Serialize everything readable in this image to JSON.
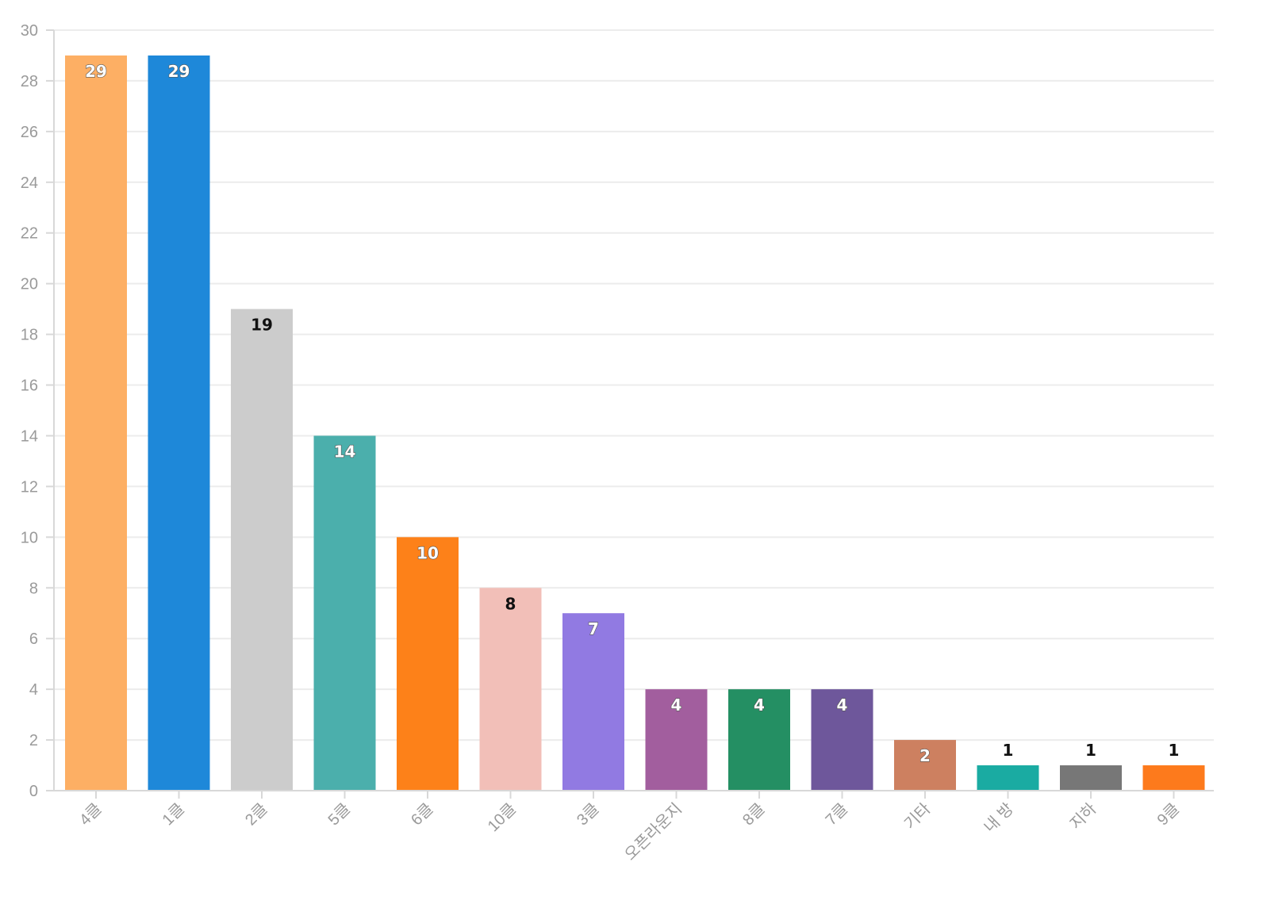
{
  "chart_data": {
    "type": "bar",
    "title": "",
    "xlabel": "",
    "ylabel": "",
    "ylim": [
      0,
      30
    ],
    "y_ticks": [
      0,
      2,
      4,
      6,
      8,
      10,
      12,
      14,
      16,
      18,
      20,
      22,
      24,
      26,
      28,
      30
    ],
    "grid": true,
    "legend": "none",
    "categories": [
      "4클",
      "1클",
      "2클",
      "5클",
      "6클",
      "10클",
      "3클",
      "오픈라운지",
      "8클",
      "7클",
      "기타",
      "내 방",
      "지하",
      "9클"
    ],
    "values": [
      29,
      29,
      19,
      14,
      10,
      8,
      7,
      4,
      4,
      4,
      2,
      1,
      1,
      1
    ],
    "colors": [
      "#fdaf64",
      "#1e88d9",
      "#cccccc",
      "#4bafac",
      "#fd8119",
      "#f2bfb8",
      "#917ae2",
      "#a25e9e",
      "#248f63",
      "#6e579b",
      "#cd8060",
      "#1aaba2",
      "#777777",
      "#fd7a1c"
    ],
    "label_styles": [
      "light",
      "light",
      "dark",
      "light",
      "light",
      "dark",
      "light",
      "light",
      "light",
      "light",
      "light",
      "dark",
      "dark",
      "dark"
    ],
    "label_positions": [
      "inside",
      "inside",
      "inside",
      "inside",
      "inside",
      "inside",
      "inside",
      "inside",
      "inside",
      "inside",
      "inside",
      "above",
      "above",
      "above"
    ]
  }
}
